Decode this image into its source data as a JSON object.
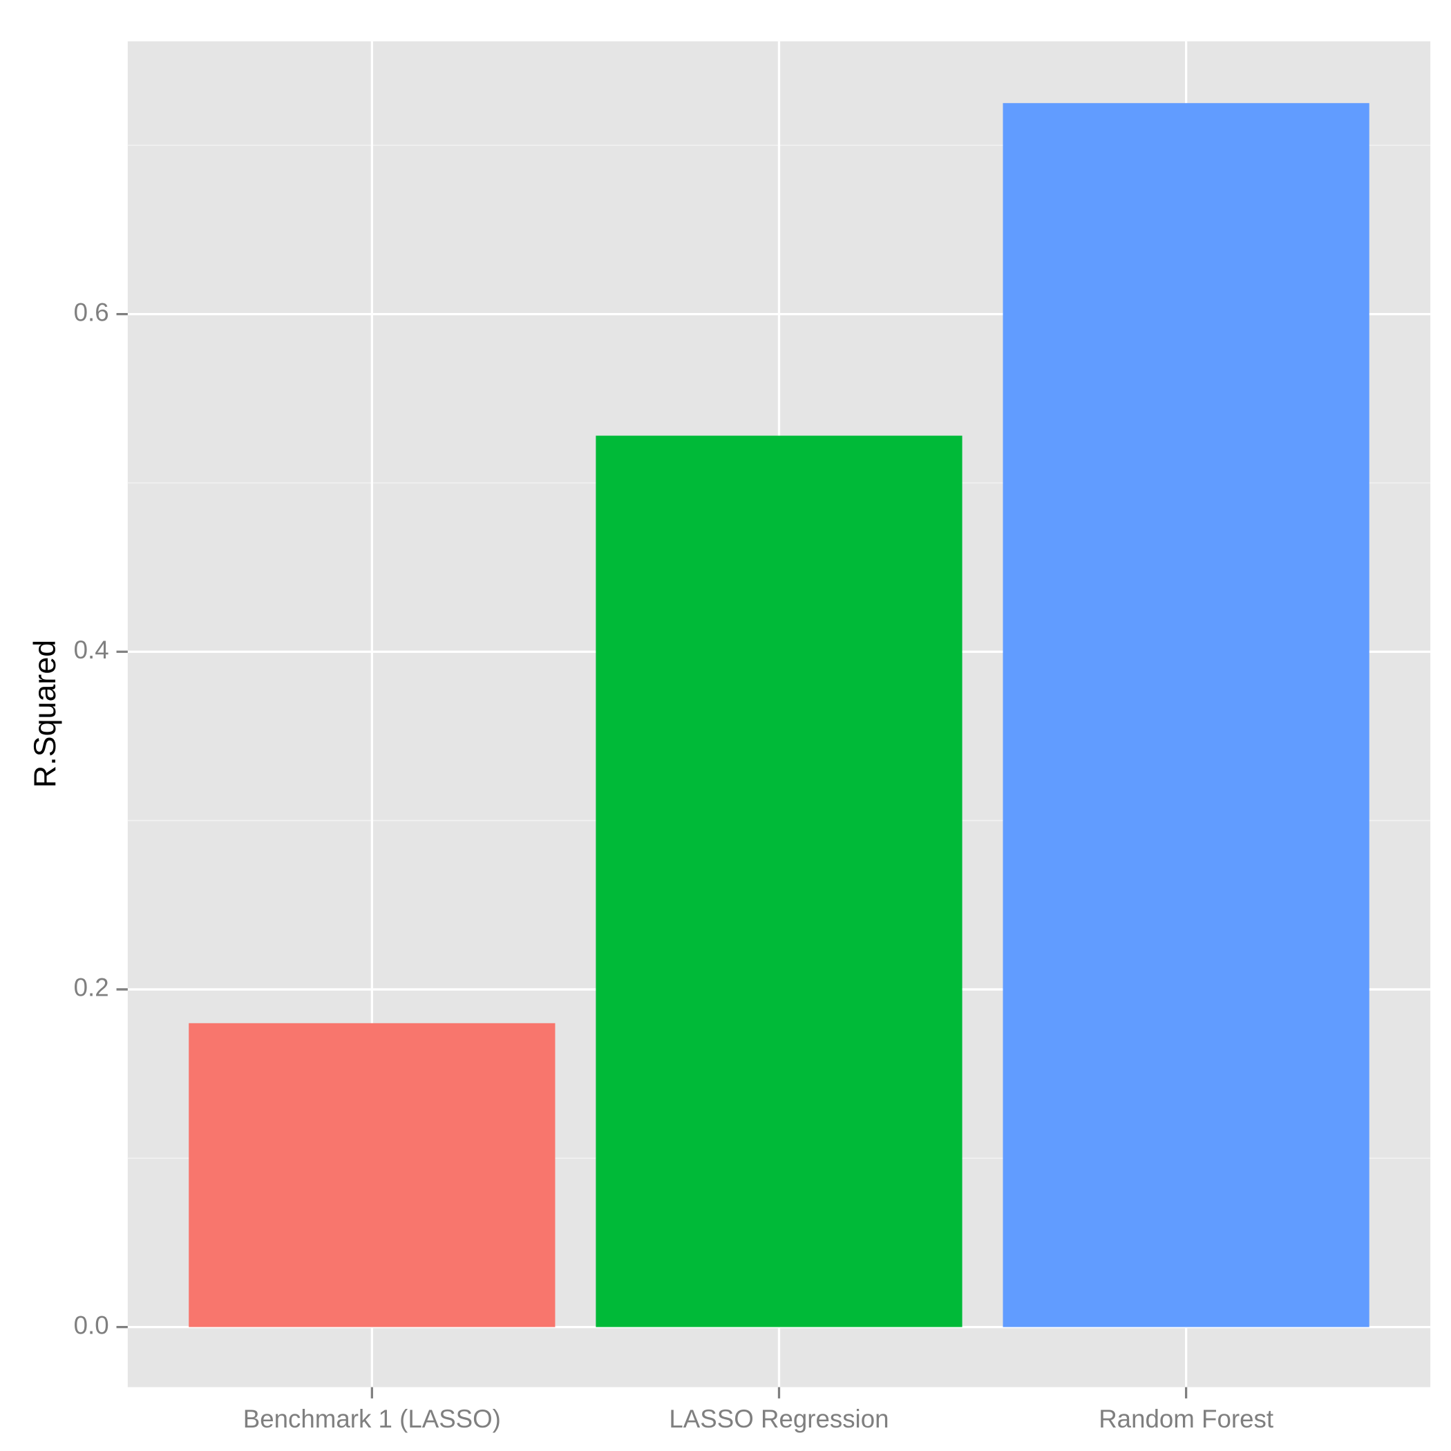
{
  "chart_data": {
    "type": "bar",
    "y_label": "R.Squared",
    "categories": [
      "Benchmark 1 (LASSO)",
      "LASSO Regression",
      "Random Forest"
    ],
    "values": [
      0.18,
      0.528,
      0.725
    ],
    "colors": [
      "#f8766d",
      "#00ba38",
      "#619cff"
    ],
    "ylim": [
      -0.0356,
      0.7616
    ],
    "yticks": [
      {
        "value": 0,
        "label": "0.0"
      },
      0.2,
      0.4,
      0.6
    ],
    "minor_yticks": [
      0.1,
      0.3,
      0.5,
      0.7
    ],
    "grid": true
  }
}
